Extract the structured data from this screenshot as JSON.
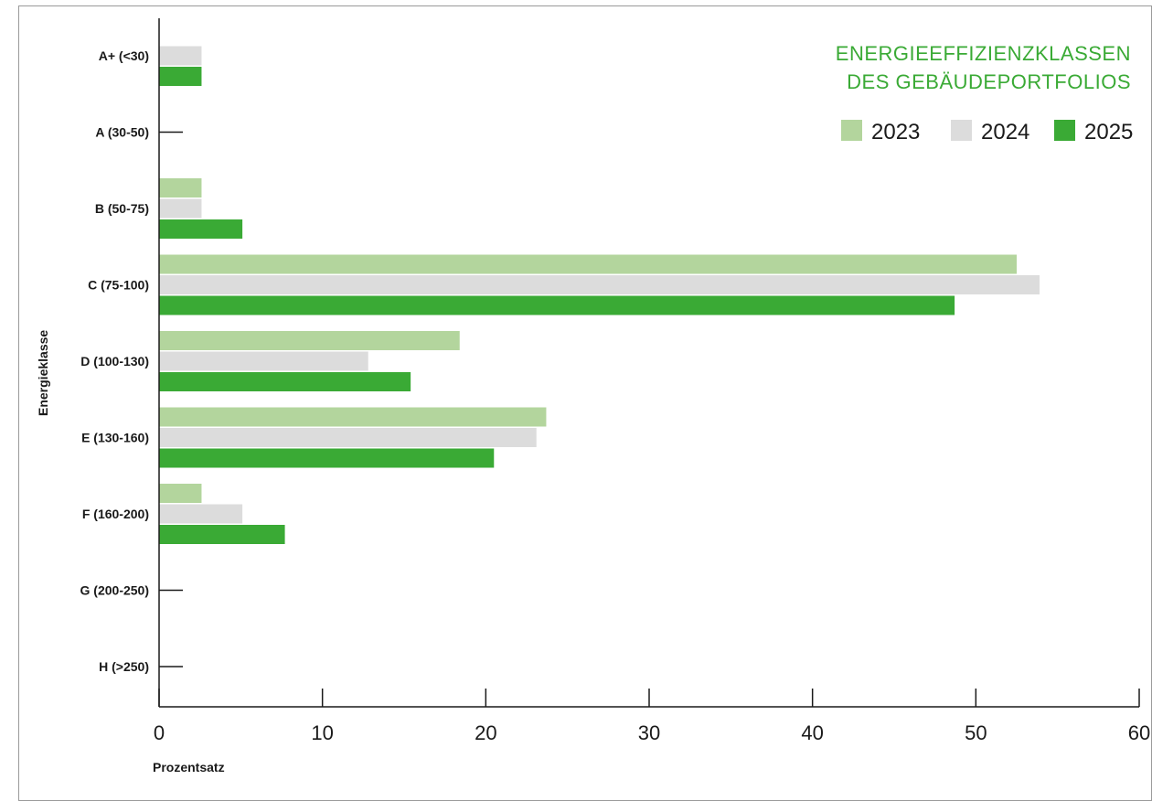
{
  "chart_data": {
    "type": "bar",
    "orientation": "horizontal",
    "title_lines": [
      "ENERGIEEFFIZIENZKLASSEN",
      "DES GEBÄUDEPORTFOLIOS"
    ],
    "xlabel": "Prozentsatz",
    "ylabel": "Energieklasse",
    "xlim": [
      0,
      60
    ],
    "xticks": [
      0,
      10,
      20,
      30,
      40,
      50,
      60
    ],
    "grid": false,
    "legend_position": "top-right",
    "categories": [
      "A+ (<30)",
      "A (30-50)",
      "B (50-75)",
      "C (75-100)",
      "D (100-130)",
      "E (130-160)",
      "F (160-200)",
      "G (200-250)",
      "H (>250)"
    ],
    "series": [
      {
        "name": "2023",
        "color": "#b3d59d",
        "values": [
          0,
          0,
          2.6,
          52.5,
          18.4,
          23.7,
          2.6,
          0,
          0
        ]
      },
      {
        "name": "2024",
        "color": "#dcdcdc",
        "values": [
          2.6,
          0,
          2.6,
          53.9,
          12.8,
          23.1,
          5.1,
          0,
          0
        ]
      },
      {
        "name": "2025",
        "color": "#3aaa35",
        "values": [
          2.6,
          0,
          5.1,
          48.7,
          15.4,
          20.5,
          7.7,
          0,
          0
        ]
      }
    ]
  }
}
